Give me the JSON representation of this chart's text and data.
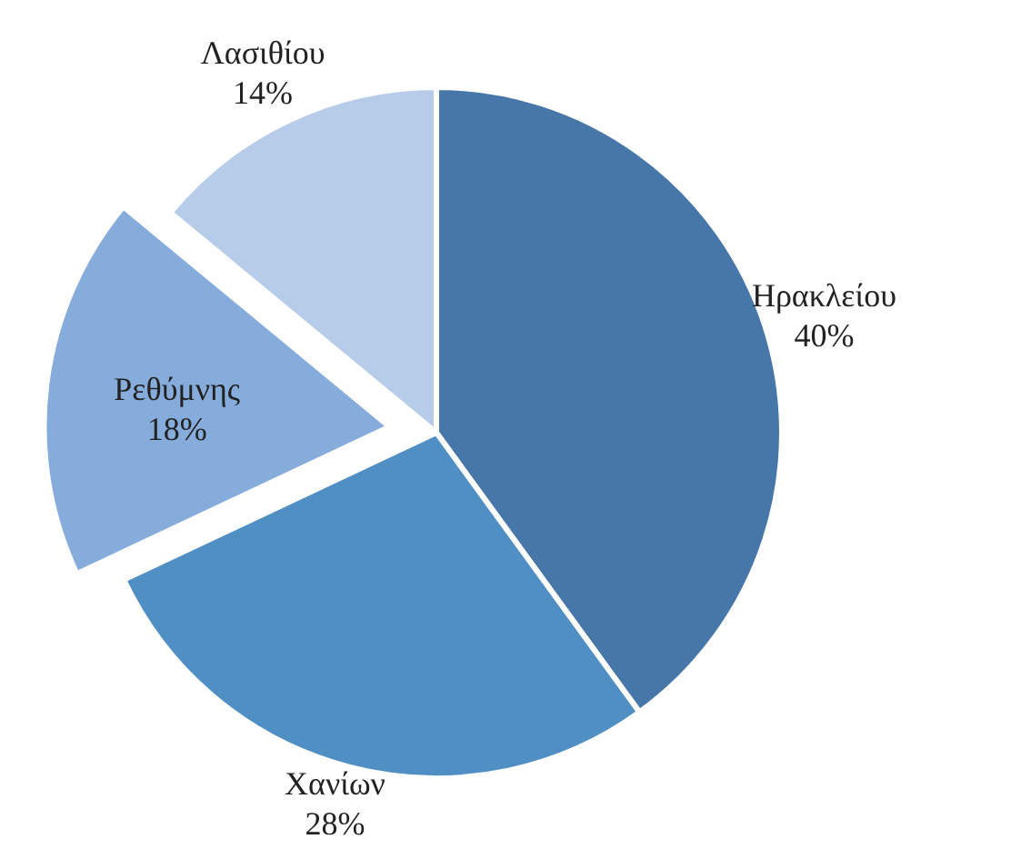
{
  "chart_data": {
    "type": "pie",
    "categories": [
      "Ηρακλείου",
      "Χανίων",
      "Ρεθύμνης",
      "Λασιθίου"
    ],
    "values": [
      40,
      28,
      18,
      14
    ],
    "value_labels": [
      "40%",
      "28%",
      "18%",
      "14%"
    ],
    "colors": [
      "#4677a8",
      "#4f8fc4",
      "#86acdc",
      "#b7cce8"
    ]
  }
}
